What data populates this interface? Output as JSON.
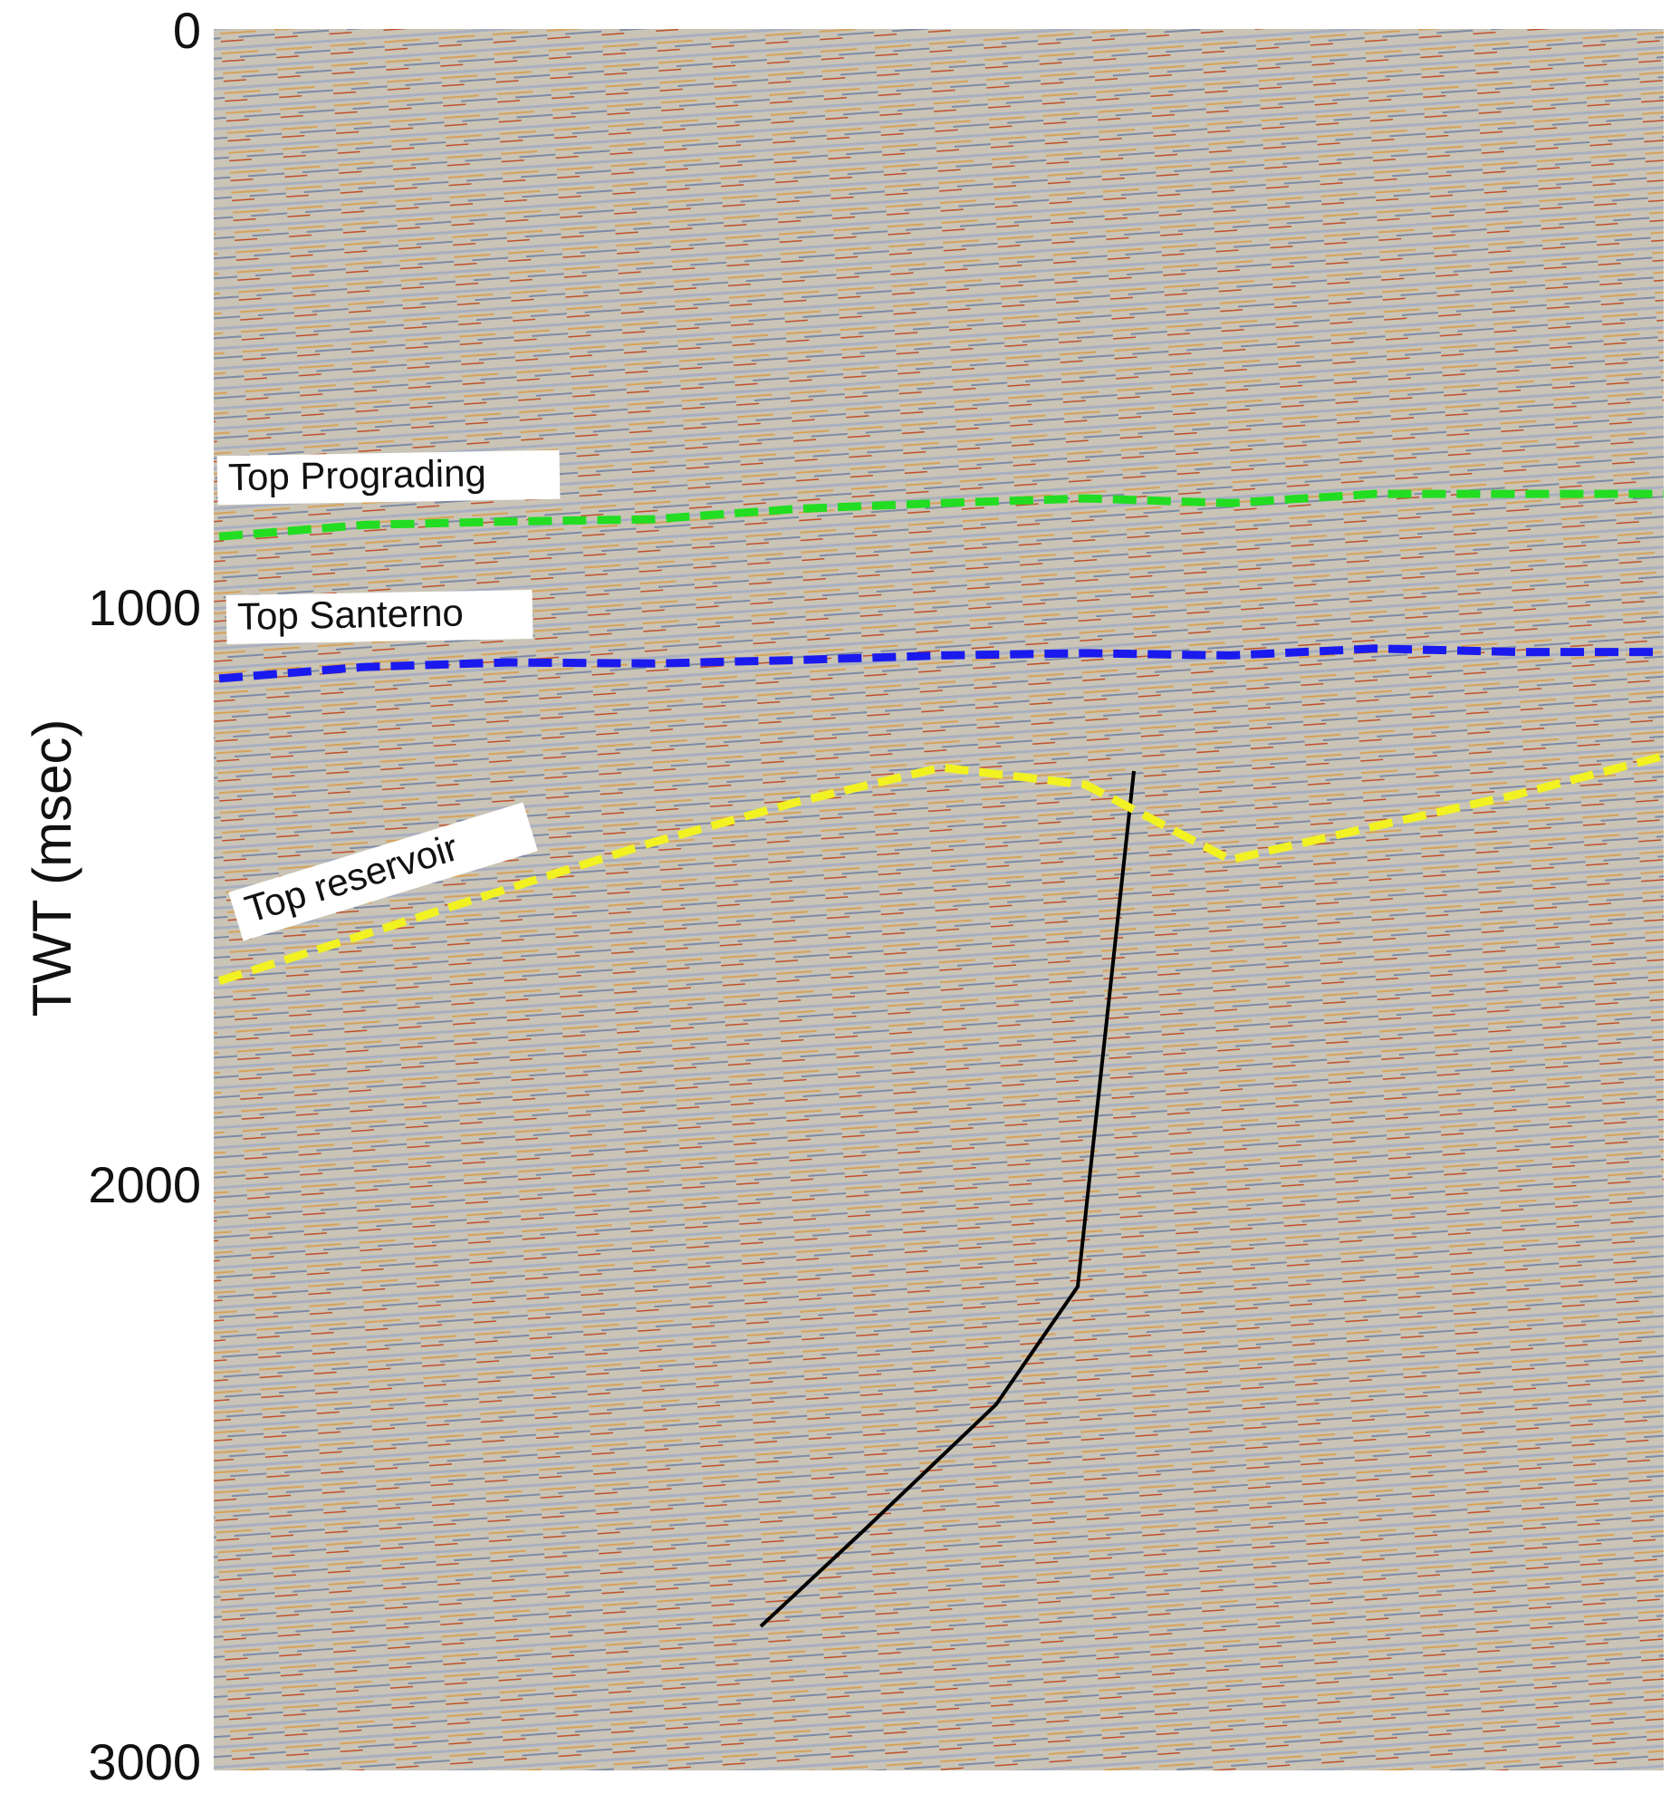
{
  "chart_data": {
    "type": "line",
    "ylabel": "TWT (msec)",
    "ylim": [
      0,
      3000
    ],
    "yticks": [
      0,
      1000,
      2000,
      3000
    ],
    "y_inverted": true,
    "line_style": "dashed",
    "categories": [
      null,
      null,
      null,
      null,
      null,
      null,
      null,
      null,
      null,
      null,
      null
    ],
    "series": [
      {
        "name": "Top Prograding",
        "color": "#22dd22",
        "values": [
          870,
          850,
          844,
          840,
          822,
          812,
          804,
          812,
          796,
          796,
          796
        ]
      },
      {
        "name": "Top Santerno",
        "color": "#1a1aee",
        "values": [
          1116,
          1096,
          1088,
          1090,
          1084,
          1076,
          1072,
          1076,
          1064,
          1070,
          1070
        ]
      },
      {
        "name": "Top reservoir",
        "color": "#f2f222",
        "values": [
          1640,
          1560,
          1480,
          1400,
          1330,
          1270,
          1300,
          1430,
          1372,
          1316,
          1250
        ]
      }
    ]
  }
}
